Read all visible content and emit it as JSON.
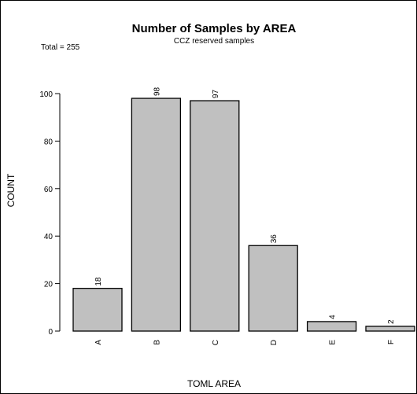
{
  "title": "Number of Samples by AREA",
  "subtitle": "CCZ reserved samples",
  "total_note": "Total = 255",
  "colors": {
    "bar_fill": "#c0c0c0",
    "bar_stroke": "#000000",
    "frame": "#000000"
  },
  "chart_data": {
    "type": "bar",
    "title": "Number of Samples by AREA",
    "subtitle": "CCZ reserved samples",
    "xlabel": "TOML AREA",
    "ylabel": "COUNT",
    "categories": [
      "A",
      "B",
      "C",
      "D",
      "E",
      "F"
    ],
    "values": [
      18,
      98,
      97,
      36,
      4,
      2
    ],
    "data_labels": [
      "18",
      "98",
      "97",
      "36",
      "4",
      "2"
    ],
    "yticks": [
      0,
      20,
      40,
      60,
      80,
      100
    ],
    "ytick_labels": [
      "0",
      "20",
      "40",
      "60",
      "80",
      "100"
    ],
    "ylim": [
      0,
      100
    ],
    "grid": false,
    "legend": "none"
  }
}
